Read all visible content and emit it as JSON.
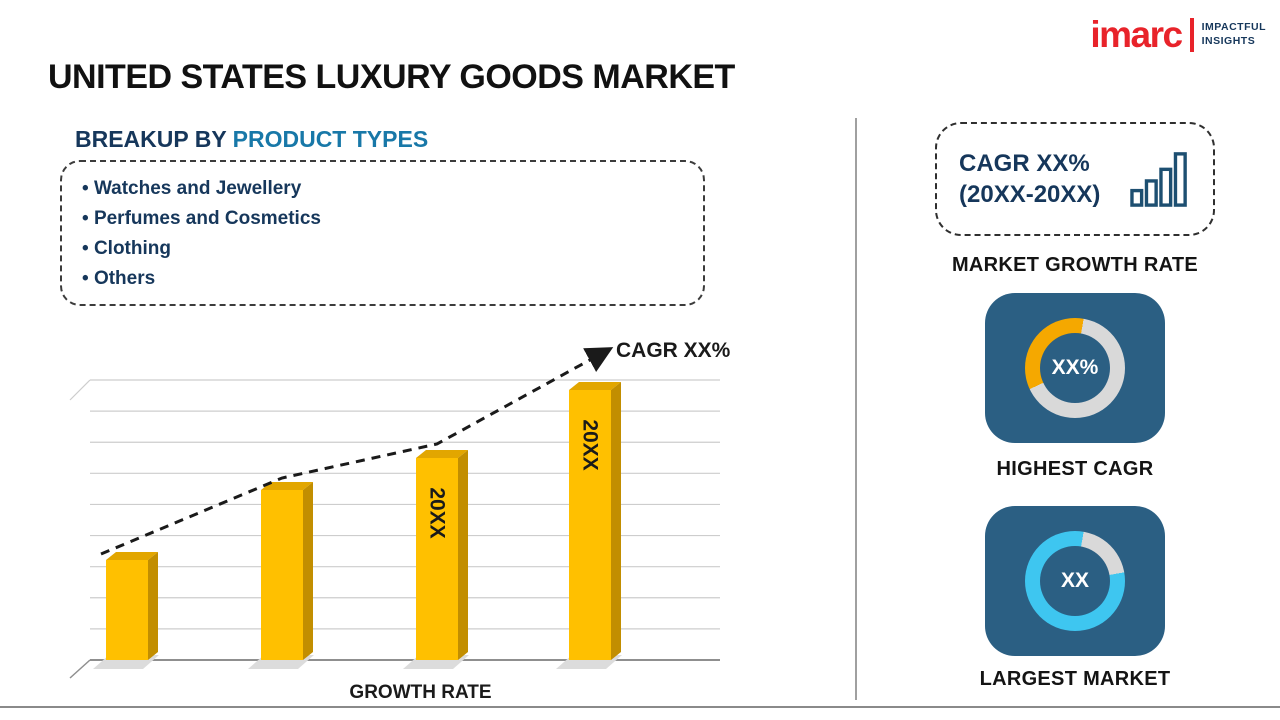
{
  "page": {
    "title": "UNITED STATES LUXURY GOODS MARKET"
  },
  "logo": {
    "brand": "imarc",
    "tagline1": "IMPACTFUL",
    "tagline2": "INSIGHTS"
  },
  "breakup": {
    "heading_prefix": "BREAKUP BY ",
    "heading_highlight": "PRODUCT TYPES",
    "items": [
      "Watches and Jewellery",
      "Perfumes and Cosmetics",
      "Clothing",
      "Others"
    ]
  },
  "chart_data": {
    "type": "bar",
    "categories": [
      "",
      "",
      "20XX",
      "20XX"
    ],
    "values": [
      100,
      170,
      202,
      270
    ],
    "values_note": "relative bar heights; no numeric axis values are shown in the image",
    "xlabel": "GROWTH RATE",
    "ylabel": "",
    "grid": true,
    "gridline_count": 10,
    "trend_label": "CAGR XX%",
    "trend_style": "dashed-arrow",
    "legend": "none"
  },
  "sidebar": {
    "growth_card": {
      "line1": "CAGR XX%",
      "line2": "(20XX-20XX)",
      "caption": "MARKET GROWTH RATE"
    },
    "highest_cagr": {
      "value": "XX%",
      "caption": "HIGHEST CAGR"
    },
    "largest_market": {
      "value": "XX",
      "caption": "LARGEST MARKET"
    }
  },
  "colors": {
    "bar_yellow": "#FFC000",
    "bar_side": "#C28E00",
    "bar_top": "#E2A600",
    "heading_navy": "#16375B",
    "heading_blue": "#1878A8",
    "card_navy": "#2B5F83",
    "donut_orange": "#F5A800",
    "donut_cyan": "#3EC6F0",
    "donut_gray": "#D9D9D9",
    "brand_red": "#E8232A",
    "text_dark": "#1A1A1A"
  }
}
